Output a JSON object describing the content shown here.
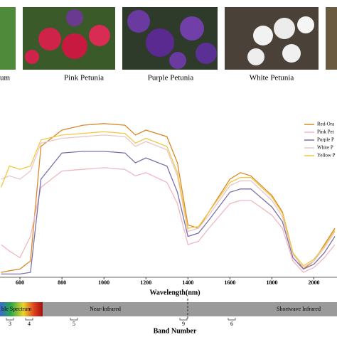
{
  "photos": {
    "captions": [
      "um",
      "Pink Petunia",
      "Purple Petunia",
      "White Petunia"
    ]
  },
  "chart_data": {
    "type": "line",
    "x_label": "Wavelength(nm)",
    "x": [
      510,
      550,
      600,
      650,
      700,
      800,
      900,
      1000,
      1100,
      1150,
      1200,
      1300,
      1350,
      1400,
      1450,
      1500,
      1600,
      1650,
      1700,
      1800,
      1850,
      1900,
      1950,
      2000,
      2050,
      2100
    ],
    "xlim": [
      505,
      2110
    ],
    "xticks": [
      600,
      800,
      1000,
      1200,
      1400,
      1600,
      1800,
      2000
    ],
    "ylim": [
      0,
      1
    ],
    "series": [
      {
        "name": "Red-Ora",
        "color": "#d9892a",
        "values": [
          0.03,
          0.04,
          0.05,
          0.1,
          0.8,
          0.9,
          0.93,
          0.94,
          0.93,
          0.87,
          0.9,
          0.86,
          0.7,
          0.32,
          0.3,
          0.4,
          0.6,
          0.64,
          0.62,
          0.5,
          0.4,
          0.15,
          0.05,
          0.1,
          0.2,
          0.3
        ]
      },
      {
        "name": "Pink Pet",
        "color": "#f1b7c0",
        "values": [
          0.2,
          0.16,
          0.12,
          0.25,
          0.55,
          0.65,
          0.66,
          0.67,
          0.66,
          0.62,
          0.64,
          0.58,
          0.45,
          0.2,
          0.22,
          0.3,
          0.45,
          0.47,
          0.47,
          0.38,
          0.3,
          0.1,
          0.03,
          0.06,
          0.12,
          0.2
        ]
      },
      {
        "name": "Purple P",
        "color": "#7b70a9",
        "values": [
          0.02,
          0.02,
          0.02,
          0.03,
          0.6,
          0.76,
          0.77,
          0.77,
          0.76,
          0.7,
          0.73,
          0.68,
          0.52,
          0.25,
          0.27,
          0.35,
          0.52,
          0.54,
          0.54,
          0.43,
          0.34,
          0.12,
          0.05,
          0.08,
          0.15,
          0.25
        ]
      },
      {
        "name": "White P",
        "color": "#e7c8c8",
        "values": [
          0.6,
          0.62,
          0.6,
          0.65,
          0.82,
          0.85,
          0.86,
          0.87,
          0.86,
          0.8,
          0.83,
          0.78,
          0.62,
          0.28,
          0.3,
          0.38,
          0.56,
          0.59,
          0.59,
          0.47,
          0.37,
          0.14,
          0.06,
          0.1,
          0.18,
          0.28
        ]
      },
      {
        "name": "Yellow P",
        "color": "#f2c744",
        "values": [
          0.55,
          0.68,
          0.66,
          0.68,
          0.84,
          0.87,
          0.88,
          0.89,
          0.88,
          0.82,
          0.85,
          0.8,
          0.64,
          0.3,
          0.31,
          0.4,
          0.58,
          0.61,
          0.61,
          0.49,
          0.39,
          0.15,
          0.07,
          0.11,
          0.19,
          0.29
        ]
      }
    ]
  },
  "spectrum": {
    "regions": [
      "ble Spectrum",
      "Near-Infrared",
      "Shortwave Infrared"
    ],
    "bands": [
      "3",
      "4",
      "5",
      "9",
      "6"
    ],
    "title": "Band Number"
  }
}
